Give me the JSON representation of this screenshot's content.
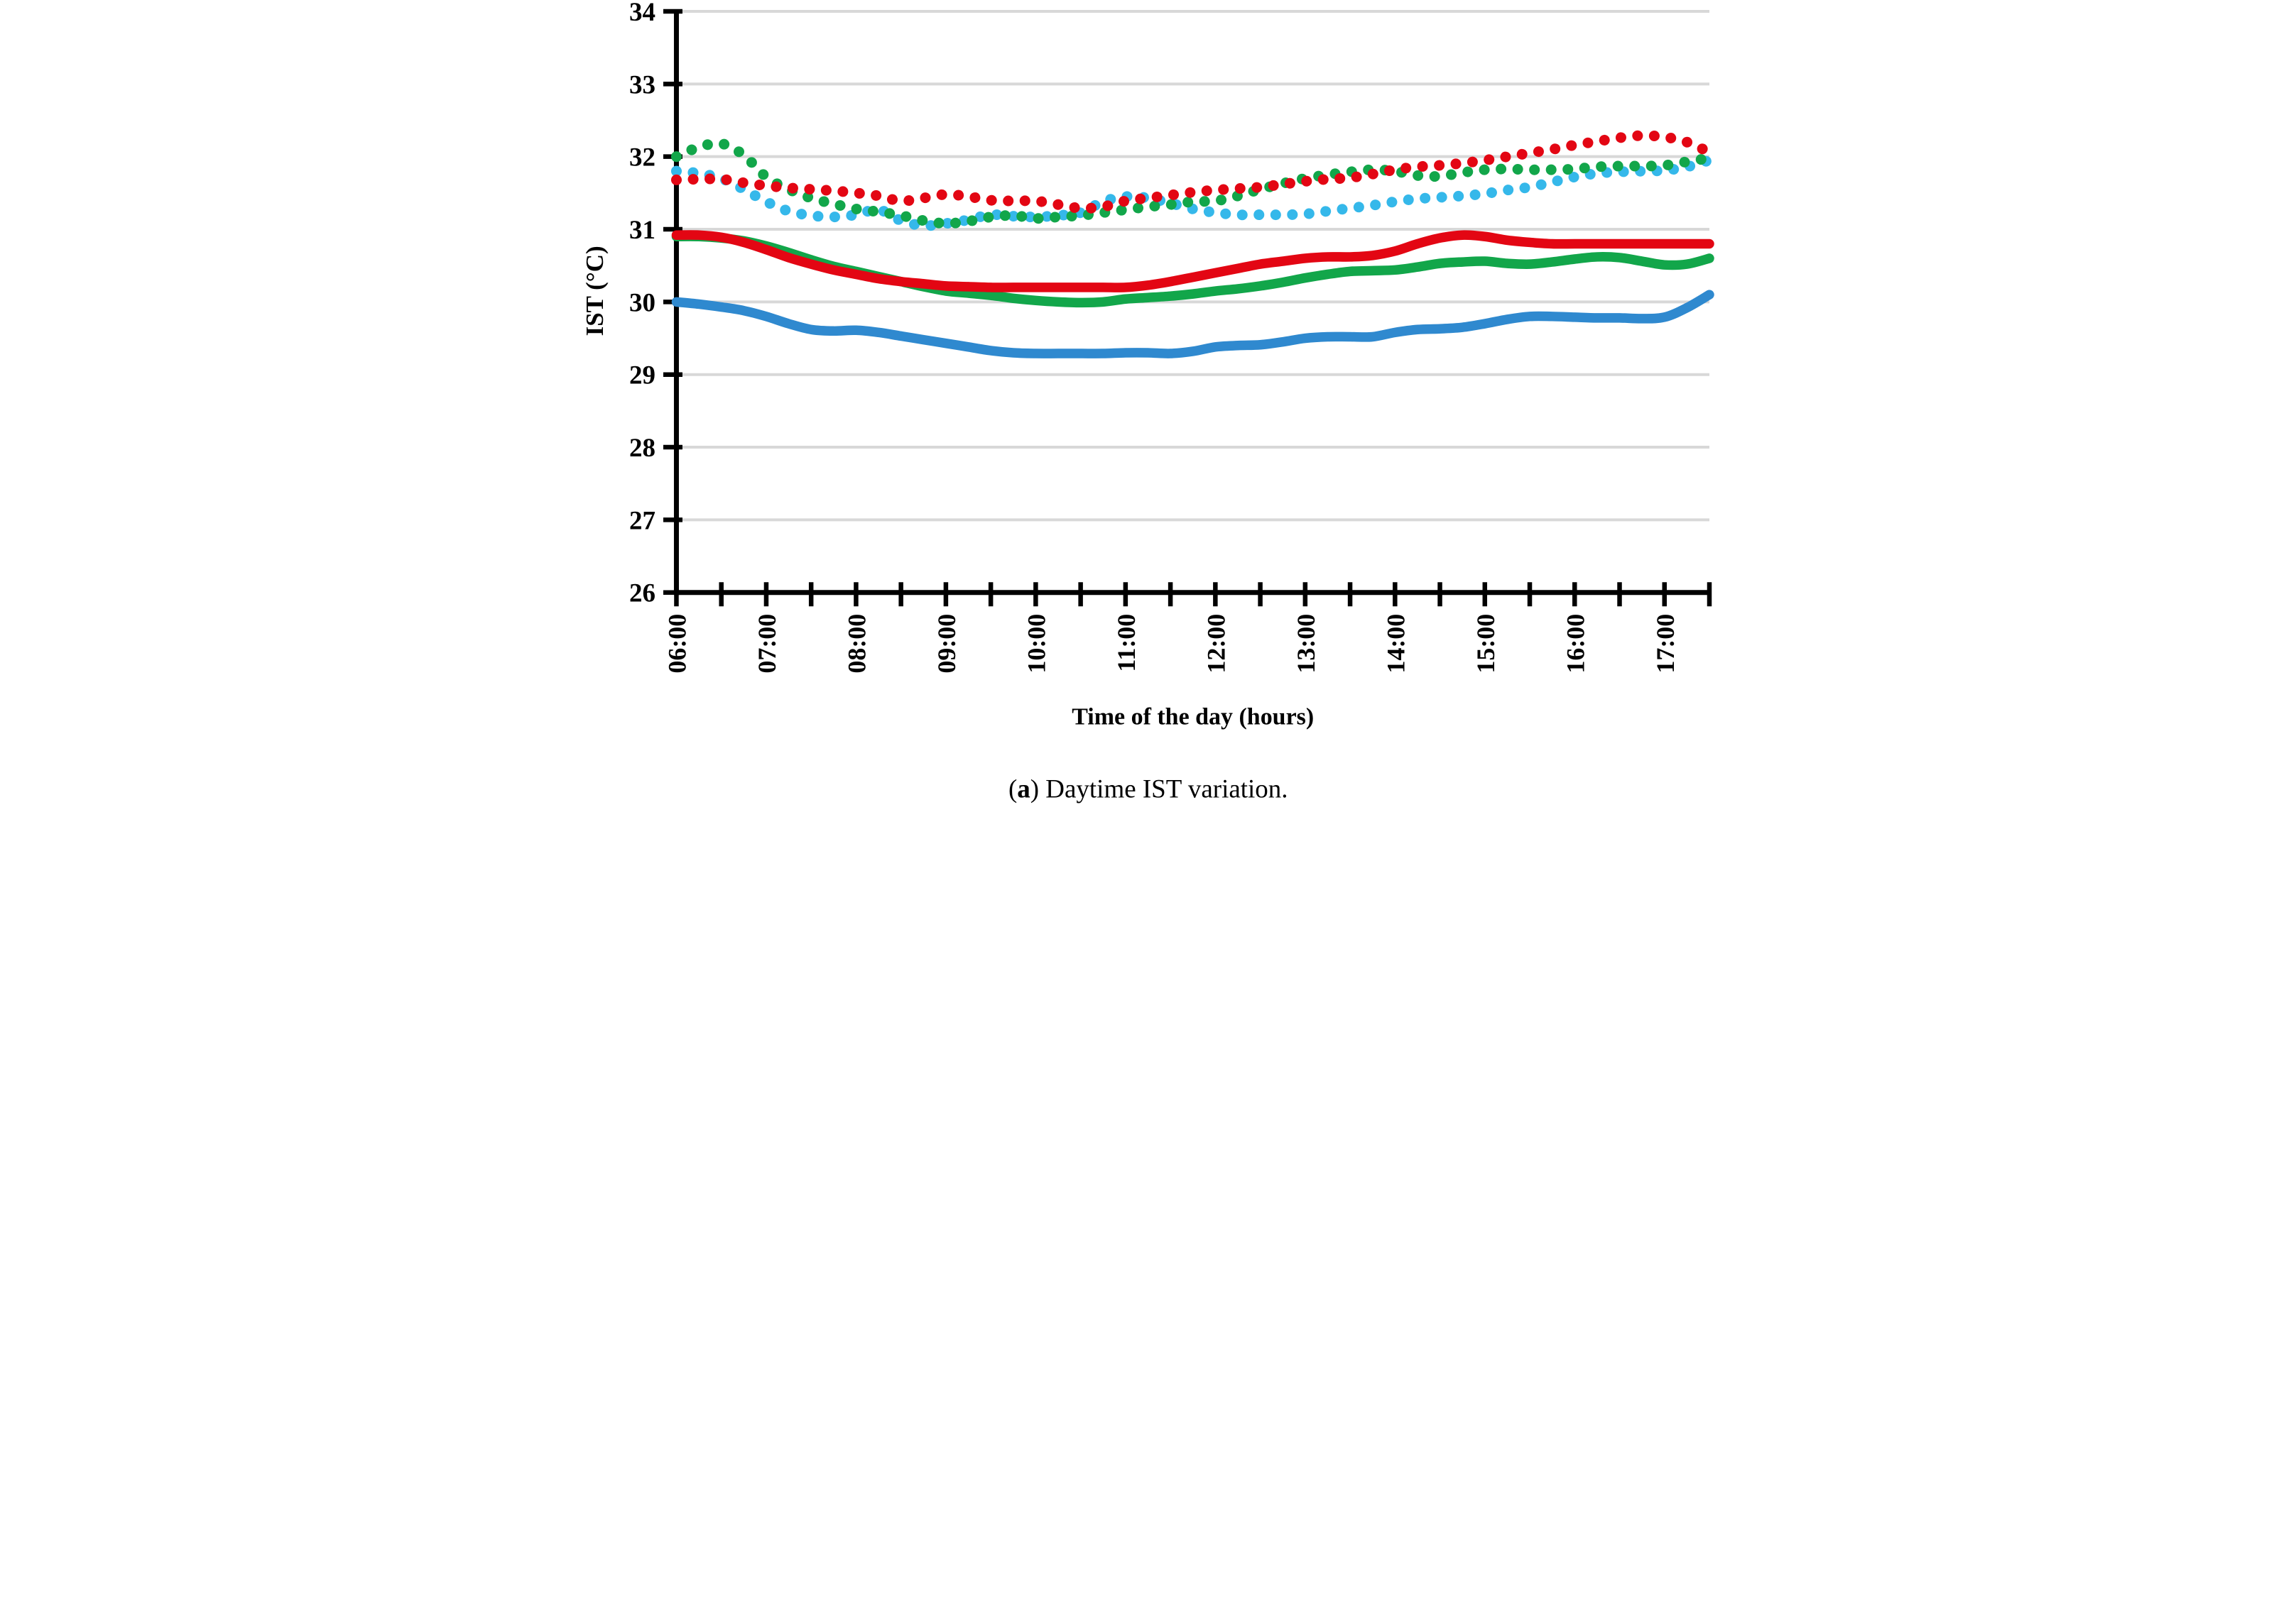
{
  "figure": {
    "caption": {
      "open_paren": "(",
      "letter": "a",
      "rest": ") Daytime IST variation."
    }
  },
  "chart_data": {
    "type": "line",
    "title": "",
    "xlabel": "Time of the day (hours)",
    "ylabel": "IST (°C)",
    "xlim_hours": [
      6.0,
      17.5
    ],
    "ylim": [
      26,
      34
    ],
    "grid": "horizontal-gray",
    "legend_position": "none",
    "y_ticks": [
      26,
      27,
      28,
      29,
      30,
      31,
      32,
      33,
      34
    ],
    "y_tick_labels": [
      "26",
      "27",
      "28",
      "29",
      "30",
      "31",
      "32",
      "33",
      "34"
    ],
    "x_tick_hours": [
      6,
      7,
      8,
      9,
      10,
      11,
      12,
      13,
      14,
      15,
      16,
      17
    ],
    "x_tick_labels": [
      "06:00",
      "07:00",
      "08:00",
      "09:00",
      "10:00",
      "11:00",
      "12:00",
      "13:00",
      "14:00",
      "15:00",
      "16:00",
      "17:00"
    ],
    "x_minor_tick_step_hours": 0.5,
    "colors": {
      "red": "#E30613",
      "green": "#12A64A",
      "cyan": "#35B8EA",
      "blue": "#2F89CF",
      "grid": "#D8D8D8",
      "axis": "#000000"
    },
    "sample_start_hour": 6.0,
    "sample_step_hours": 0.25,
    "series": [
      {
        "name": "cyan-dotted",
        "color": "cyan",
        "style": "dotted",
        "values": [
          31.8,
          31.77,
          31.7,
          31.55,
          31.38,
          31.25,
          31.19,
          31.17,
          31.2,
          31.27,
          31.12,
          31.05,
          31.08,
          31.13,
          31.2,
          31.18,
          31.17,
          31.19,
          31.23,
          31.38,
          31.45,
          31.43,
          31.36,
          31.28,
          31.23,
          31.2,
          31.2,
          31.2,
          31.21,
          31.25,
          31.29,
          31.33,
          31.38,
          31.42,
          31.44,
          31.46,
          31.49,
          31.54,
          31.58,
          31.65,
          31.72,
          31.77,
          31.79,
          31.8,
          31.81,
          31.86,
          31.95
        ]
      },
      {
        "name": "green-dotted",
        "color": "green",
        "style": "dotted",
        "values": [
          32.0,
          32.13,
          32.18,
          32.02,
          31.72,
          31.55,
          31.43,
          31.35,
          31.28,
          31.24,
          31.19,
          31.12,
          31.08,
          31.11,
          31.17,
          31.19,
          31.15,
          31.17,
          31.19,
          31.23,
          31.27,
          31.31,
          31.34,
          31.38,
          31.39,
          31.46,
          31.55,
          31.63,
          31.7,
          31.75,
          31.79,
          31.82,
          31.8,
          31.74,
          31.73,
          31.78,
          31.82,
          31.83,
          31.82,
          31.82,
          31.83,
          31.86,
          31.87,
          31.87,
          31.88,
          31.93,
          31.98
        ]
      },
      {
        "name": "red-dotted",
        "color": "red",
        "style": "dotted",
        "values": [
          31.68,
          31.69,
          31.69,
          31.64,
          31.6,
          31.57,
          31.55,
          31.53,
          31.5,
          31.46,
          31.39,
          31.43,
          31.48,
          31.45,
          31.4,
          31.39,
          31.39,
          31.34,
          31.29,
          31.31,
          31.39,
          31.43,
          31.47,
          31.51,
          31.54,
          31.56,
          31.58,
          31.62,
          31.66,
          31.69,
          31.71,
          31.76,
          31.82,
          31.86,
          31.88,
          31.91,
          31.95,
          32.0,
          32.05,
          32.1,
          32.16,
          32.21,
          32.26,
          32.29,
          32.27,
          32.2,
          32.06
        ]
      },
      {
        "name": "blue-solid",
        "color": "blue",
        "style": "solid",
        "values": [
          30.0,
          29.97,
          29.93,
          29.88,
          29.8,
          29.7,
          29.62,
          29.6,
          29.61,
          29.58,
          29.53,
          29.48,
          29.43,
          29.38,
          29.33,
          29.3,
          29.29,
          29.29,
          29.29,
          29.29,
          29.3,
          29.3,
          29.29,
          29.32,
          29.38,
          29.4,
          29.41,
          29.45,
          29.5,
          29.52,
          29.52,
          29.52,
          29.58,
          29.62,
          29.63,
          29.65,
          29.7,
          29.76,
          29.8,
          29.8,
          29.79,
          29.78,
          29.78,
          29.77,
          29.79,
          29.92,
          30.1
        ]
      },
      {
        "name": "green-solid",
        "color": "green",
        "style": "solid",
        "values": [
          30.9,
          30.9,
          30.88,
          30.84,
          30.77,
          30.68,
          30.58,
          30.49,
          30.42,
          30.35,
          30.28,
          30.21,
          30.15,
          30.12,
          30.09,
          30.05,
          30.02,
          30.0,
          29.99,
          30.0,
          30.04,
          30.06,
          30.08,
          30.11,
          30.15,
          30.18,
          30.22,
          30.27,
          30.33,
          30.38,
          30.42,
          30.43,
          30.44,
          30.48,
          30.53,
          30.55,
          30.56,
          30.53,
          30.52,
          30.55,
          30.59,
          30.62,
          30.61,
          30.56,
          30.51,
          30.52,
          30.6
        ]
      },
      {
        "name": "red-solid",
        "color": "red",
        "style": "solid",
        "values": [
          30.92,
          30.92,
          30.89,
          30.82,
          30.72,
          30.61,
          30.52,
          30.44,
          30.38,
          30.32,
          30.28,
          30.25,
          30.22,
          30.21,
          30.2,
          30.2,
          30.2,
          30.2,
          30.2,
          30.2,
          30.2,
          30.23,
          30.28,
          30.34,
          30.4,
          30.46,
          30.52,
          30.56,
          30.6,
          30.62,
          30.62,
          30.64,
          30.7,
          30.8,
          30.88,
          30.92,
          30.9,
          30.85,
          30.82,
          30.8,
          30.8,
          30.8,
          30.8,
          30.8,
          30.8,
          30.8,
          30.8
        ]
      }
    ]
  }
}
